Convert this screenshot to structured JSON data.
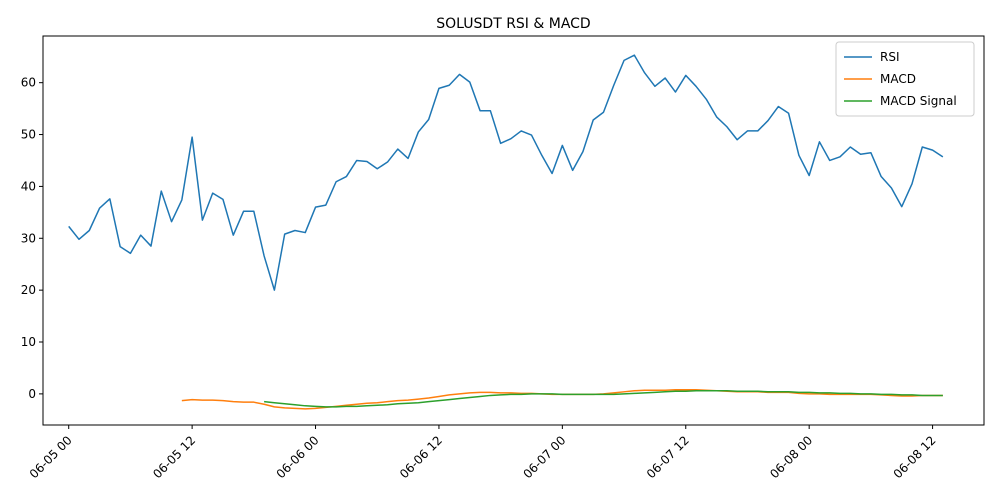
{
  "chart_data": {
    "type": "line",
    "title": "SOLUSDT RSI & MACD",
    "xlabel": "",
    "ylabel": "",
    "x_range": [
      "2023-06-04 21:30",
      "2023-06-08 17:00"
    ],
    "y_range": [
      -6,
      69
    ],
    "grid": false,
    "legend_position": "top-right",
    "x_ticks": [
      {
        "x": "2023-06-05 00:00",
        "label": "06-05 00"
      },
      {
        "x": "2023-06-05 12:00",
        "label": "06-05 12"
      },
      {
        "x": "2023-06-06 00:00",
        "label": "06-06 00"
      },
      {
        "x": "2023-06-06 12:00",
        "label": "06-06 12"
      },
      {
        "x": "2023-06-07 00:00",
        "label": "06-07 00"
      },
      {
        "x": "2023-06-07 12:00",
        "label": "06-07 12"
      },
      {
        "x": "2023-06-08 00:00",
        "label": "06-08 00"
      },
      {
        "x": "2023-06-08 12:00",
        "label": "06-08 12"
      }
    ],
    "y_ticks": [
      0,
      10,
      20,
      30,
      40,
      50,
      60
    ],
    "series": [
      {
        "name": "RSI",
        "color": "#1f77b4",
        "points": [
          [
            "2023-06-05 00:00",
            32.3
          ],
          [
            "2023-06-05 01:00",
            29.8
          ],
          [
            "2023-06-05 02:00",
            31.5
          ],
          [
            "2023-06-05 03:00",
            35.8
          ],
          [
            "2023-06-05 04:00",
            37.6
          ],
          [
            "2023-06-05 05:00",
            28.4
          ],
          [
            "2023-06-05 06:00",
            27.1
          ],
          [
            "2023-06-05 07:00",
            30.6
          ],
          [
            "2023-06-05 08:00",
            28.5
          ],
          [
            "2023-06-05 09:00",
            39.1
          ],
          [
            "2023-06-05 10:00",
            33.2
          ],
          [
            "2023-06-05 11:00",
            37.4
          ],
          [
            "2023-06-05 12:00",
            49.5
          ],
          [
            "2023-06-05 13:00",
            33.5
          ],
          [
            "2023-06-05 14:00",
            38.7
          ],
          [
            "2023-06-05 15:00",
            37.5
          ],
          [
            "2023-06-05 16:00",
            30.6
          ],
          [
            "2023-06-05 17:00",
            35.2
          ],
          [
            "2023-06-05 18:00",
            35.2
          ],
          [
            "2023-06-05 19:00",
            26.6
          ],
          [
            "2023-06-05 20:00",
            20.0
          ],
          [
            "2023-06-05 21:00",
            30.8
          ],
          [
            "2023-06-05 22:00",
            31.5
          ],
          [
            "2023-06-05 23:00",
            31.1
          ],
          [
            "2023-06-06 00:00",
            36.0
          ],
          [
            "2023-06-06 01:00",
            36.4
          ],
          [
            "2023-06-06 02:00",
            40.9
          ],
          [
            "2023-06-06 03:00",
            41.9
          ],
          [
            "2023-06-06 04:00",
            45.0
          ],
          [
            "2023-06-06 05:00",
            44.8
          ],
          [
            "2023-06-06 06:00",
            43.4
          ],
          [
            "2023-06-06 07:00",
            44.7
          ],
          [
            "2023-06-06 08:00",
            47.2
          ],
          [
            "2023-06-06 09:00",
            45.4
          ],
          [
            "2023-06-06 10:00",
            50.5
          ],
          [
            "2023-06-06 11:00",
            52.9
          ],
          [
            "2023-06-06 12:00",
            58.9
          ],
          [
            "2023-06-06 13:00",
            59.5
          ],
          [
            "2023-06-06 14:00",
            61.6
          ],
          [
            "2023-06-06 15:00",
            60.1
          ],
          [
            "2023-06-06 16:00",
            54.6
          ],
          [
            "2023-06-06 17:00",
            54.6
          ],
          [
            "2023-06-06 18:00",
            48.3
          ],
          [
            "2023-06-06 19:00",
            49.2
          ],
          [
            "2023-06-06 20:00",
            50.7
          ],
          [
            "2023-06-06 21:00",
            49.9
          ],
          [
            "2023-06-06 22:00",
            46.0
          ],
          [
            "2023-06-06 23:00",
            42.5
          ],
          [
            "2023-06-07 00:00",
            47.9
          ],
          [
            "2023-06-07 01:00",
            43.1
          ],
          [
            "2023-06-07 02:00",
            46.7
          ],
          [
            "2023-06-07 03:00",
            52.8
          ],
          [
            "2023-06-07 04:00",
            54.3
          ],
          [
            "2023-06-07 05:00",
            59.5
          ],
          [
            "2023-06-07 06:00",
            64.3
          ],
          [
            "2023-06-07 07:00",
            65.3
          ],
          [
            "2023-06-07 08:00",
            61.9
          ],
          [
            "2023-06-07 09:00",
            59.3
          ],
          [
            "2023-06-07 10:00",
            60.9
          ],
          [
            "2023-06-07 11:00",
            58.2
          ],
          [
            "2023-06-07 12:00",
            61.4
          ],
          [
            "2023-06-07 13:00",
            59.3
          ],
          [
            "2023-06-07 14:00",
            56.8
          ],
          [
            "2023-06-07 15:00",
            53.4
          ],
          [
            "2023-06-07 16:00",
            51.5
          ],
          [
            "2023-06-07 17:00",
            49.0
          ],
          [
            "2023-06-07 18:00",
            50.7
          ],
          [
            "2023-06-07 19:00",
            50.7
          ],
          [
            "2023-06-07 20:00",
            52.7
          ],
          [
            "2023-06-07 21:00",
            55.4
          ],
          [
            "2023-06-07 22:00",
            54.1
          ],
          [
            "2023-06-07 23:00",
            46.0
          ],
          [
            "2023-06-08 00:00",
            42.1
          ],
          [
            "2023-06-08 01:00",
            48.6
          ],
          [
            "2023-06-08 02:00",
            45.0
          ],
          [
            "2023-06-08 03:00",
            45.7
          ],
          [
            "2023-06-08 04:00",
            47.6
          ],
          [
            "2023-06-08 05:00",
            46.2
          ],
          [
            "2023-06-08 06:00",
            46.5
          ],
          [
            "2023-06-08 07:00",
            41.9
          ],
          [
            "2023-06-08 08:00",
            39.7
          ],
          [
            "2023-06-08 09:00",
            36.1
          ],
          [
            "2023-06-08 10:00",
            40.5
          ],
          [
            "2023-06-08 11:00",
            47.6
          ],
          [
            "2023-06-08 12:00",
            47.0
          ],
          [
            "2023-06-08 13:00",
            45.7
          ]
        ]
      },
      {
        "name": "MACD",
        "color": "#ff7f0e",
        "points": [
          [
            "2023-06-05 11:00",
            -1.3
          ],
          [
            "2023-06-05 12:00",
            -1.1
          ],
          [
            "2023-06-05 13:00",
            -1.2
          ],
          [
            "2023-06-05 14:00",
            -1.2
          ],
          [
            "2023-06-05 15:00",
            -1.3
          ],
          [
            "2023-06-05 16:00",
            -1.5
          ],
          [
            "2023-06-05 17:00",
            -1.6
          ],
          [
            "2023-06-05 18:00",
            -1.6
          ],
          [
            "2023-06-05 19:00",
            -2.0
          ],
          [
            "2023-06-05 20:00",
            -2.5
          ],
          [
            "2023-06-05 21:00",
            -2.7
          ],
          [
            "2023-06-05 22:00",
            -2.8
          ],
          [
            "2023-06-05 23:00",
            -2.9
          ],
          [
            "2023-06-06 00:00",
            -2.8
          ],
          [
            "2023-06-06 01:00",
            -2.6
          ],
          [
            "2023-06-06 02:00",
            -2.4
          ],
          [
            "2023-06-06 03:00",
            -2.2
          ],
          [
            "2023-06-06 04:00",
            -2.0
          ],
          [
            "2023-06-06 05:00",
            -1.8
          ],
          [
            "2023-06-06 06:00",
            -1.7
          ],
          [
            "2023-06-06 07:00",
            -1.5
          ],
          [
            "2023-06-06 08:00",
            -1.3
          ],
          [
            "2023-06-06 09:00",
            -1.2
          ],
          [
            "2023-06-06 10:00",
            -1.0
          ],
          [
            "2023-06-06 11:00",
            -0.8
          ],
          [
            "2023-06-06 12:00",
            -0.5
          ],
          [
            "2023-06-06 13:00",
            -0.2
          ],
          [
            "2023-06-06 14:00",
            0.0
          ],
          [
            "2023-06-06 15:00",
            0.2
          ],
          [
            "2023-06-06 16:00",
            0.3
          ],
          [
            "2023-06-06 17:00",
            0.3
          ],
          [
            "2023-06-06 18:00",
            0.2
          ],
          [
            "2023-06-06 19:00",
            0.2
          ],
          [
            "2023-06-06 20:00",
            0.1
          ],
          [
            "2023-06-06 21:00",
            0.1
          ],
          [
            "2023-06-06 22:00",
            0.0
          ],
          [
            "2023-06-06 23:00",
            -0.1
          ],
          [
            "2023-06-07 00:00",
            -0.1
          ],
          [
            "2023-06-07 01:00",
            -0.1
          ],
          [
            "2023-06-07 02:00",
            -0.1
          ],
          [
            "2023-06-07 03:00",
            -0.1
          ],
          [
            "2023-06-07 04:00",
            0.0
          ],
          [
            "2023-06-07 05:00",
            0.2
          ],
          [
            "2023-06-07 06:00",
            0.4
          ],
          [
            "2023-06-07 07:00",
            0.6
          ],
          [
            "2023-06-07 08:00",
            0.7
          ],
          [
            "2023-06-07 09:00",
            0.7
          ],
          [
            "2023-06-07 10:00",
            0.7
          ],
          [
            "2023-06-07 11:00",
            0.8
          ],
          [
            "2023-06-07 12:00",
            0.8
          ],
          [
            "2023-06-07 13:00",
            0.8
          ],
          [
            "2023-06-07 14:00",
            0.7
          ],
          [
            "2023-06-07 15:00",
            0.6
          ],
          [
            "2023-06-07 16:00",
            0.5
          ],
          [
            "2023-06-07 17:00",
            0.4
          ],
          [
            "2023-06-07 18:00",
            0.4
          ],
          [
            "2023-06-07 19:00",
            0.4
          ],
          [
            "2023-06-07 20:00",
            0.3
          ],
          [
            "2023-06-07 21:00",
            0.3
          ],
          [
            "2023-06-07 22:00",
            0.3
          ],
          [
            "2023-06-07 23:00",
            0.1
          ],
          [
            "2023-06-08 00:00",
            0.0
          ],
          [
            "2023-06-08 01:00",
            0.0
          ],
          [
            "2023-06-08 02:00",
            -0.1
          ],
          [
            "2023-06-08 03:00",
            -0.1
          ],
          [
            "2023-06-08 04:00",
            -0.1
          ],
          [
            "2023-06-08 05:00",
            -0.1
          ],
          [
            "2023-06-08 06:00",
            -0.1
          ],
          [
            "2023-06-08 07:00",
            -0.2
          ],
          [
            "2023-06-08 08:00",
            -0.3
          ],
          [
            "2023-06-08 09:00",
            -0.4
          ],
          [
            "2023-06-08 10:00",
            -0.4
          ],
          [
            "2023-06-08 11:00",
            -0.3
          ],
          [
            "2023-06-08 12:00",
            -0.3
          ],
          [
            "2023-06-08 13:00",
            -0.3
          ]
        ]
      },
      {
        "name": "MACD Signal",
        "color": "#2ca02c",
        "points": [
          [
            "2023-06-05 19:00",
            -1.5
          ],
          [
            "2023-06-05 20:00",
            -1.7
          ],
          [
            "2023-06-05 21:00",
            -1.9
          ],
          [
            "2023-06-05 22:00",
            -2.1
          ],
          [
            "2023-06-05 23:00",
            -2.3
          ],
          [
            "2023-06-06 00:00",
            -2.4
          ],
          [
            "2023-06-06 01:00",
            -2.5
          ],
          [
            "2023-06-06 02:00",
            -2.5
          ],
          [
            "2023-06-06 03:00",
            -2.4
          ],
          [
            "2023-06-06 04:00",
            -2.4
          ],
          [
            "2023-06-06 05:00",
            -2.3
          ],
          [
            "2023-06-06 06:00",
            -2.2
          ],
          [
            "2023-06-06 07:00",
            -2.1
          ],
          [
            "2023-06-06 08:00",
            -1.9
          ],
          [
            "2023-06-06 09:00",
            -1.8
          ],
          [
            "2023-06-06 10:00",
            -1.7
          ],
          [
            "2023-06-06 11:00",
            -1.5
          ],
          [
            "2023-06-06 12:00",
            -1.3
          ],
          [
            "2023-06-06 13:00",
            -1.1
          ],
          [
            "2023-06-06 14:00",
            -0.9
          ],
          [
            "2023-06-06 15:00",
            -0.7
          ],
          [
            "2023-06-06 16:00",
            -0.5
          ],
          [
            "2023-06-06 17:00",
            -0.3
          ],
          [
            "2023-06-06 18:00",
            -0.2
          ],
          [
            "2023-06-06 19:00",
            -0.1
          ],
          [
            "2023-06-06 20:00",
            -0.1
          ],
          [
            "2023-06-06 21:00",
            0.0
          ],
          [
            "2023-06-06 22:00",
            0.0
          ],
          [
            "2023-06-06 23:00",
            0.0
          ],
          [
            "2023-06-07 00:00",
            -0.1
          ],
          [
            "2023-06-07 01:00",
            -0.1
          ],
          [
            "2023-06-07 02:00",
            -0.1
          ],
          [
            "2023-06-07 03:00",
            -0.1
          ],
          [
            "2023-06-07 04:00",
            -0.1
          ],
          [
            "2023-06-07 05:00",
            -0.1
          ],
          [
            "2023-06-07 06:00",
            0.0
          ],
          [
            "2023-06-07 07:00",
            0.1
          ],
          [
            "2023-06-07 08:00",
            0.2
          ],
          [
            "2023-06-07 09:00",
            0.3
          ],
          [
            "2023-06-07 10:00",
            0.4
          ],
          [
            "2023-06-07 11:00",
            0.5
          ],
          [
            "2023-06-07 12:00",
            0.5
          ],
          [
            "2023-06-07 13:00",
            0.6
          ],
          [
            "2023-06-07 14:00",
            0.6
          ],
          [
            "2023-06-07 15:00",
            0.6
          ],
          [
            "2023-06-07 16:00",
            0.6
          ],
          [
            "2023-06-07 17:00",
            0.5
          ],
          [
            "2023-06-07 18:00",
            0.5
          ],
          [
            "2023-06-07 19:00",
            0.5
          ],
          [
            "2023-06-07 20:00",
            0.4
          ],
          [
            "2023-06-07 21:00",
            0.4
          ],
          [
            "2023-06-07 22:00",
            0.4
          ],
          [
            "2023-06-07 23:00",
            0.3
          ],
          [
            "2023-06-08 00:00",
            0.3
          ],
          [
            "2023-06-08 01:00",
            0.2
          ],
          [
            "2023-06-08 02:00",
            0.2
          ],
          [
            "2023-06-08 03:00",
            0.1
          ],
          [
            "2023-06-08 04:00",
            0.1
          ],
          [
            "2023-06-08 05:00",
            0.0
          ],
          [
            "2023-06-08 06:00",
            0.0
          ],
          [
            "2023-06-08 07:00",
            -0.1
          ],
          [
            "2023-06-08 08:00",
            -0.1
          ],
          [
            "2023-06-08 09:00",
            -0.2
          ],
          [
            "2023-06-08 10:00",
            -0.2
          ],
          [
            "2023-06-08 11:00",
            -0.3
          ],
          [
            "2023-06-08 12:00",
            -0.3
          ],
          [
            "2023-06-08 13:00",
            -0.3
          ]
        ]
      }
    ]
  }
}
